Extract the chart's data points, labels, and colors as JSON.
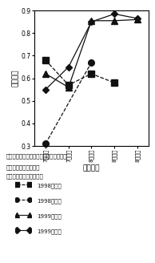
{
  "x_labels": [
    "7月中旬",
    "7月下旬",
    "8月上旬",
    "8月中旬",
    "8月下旬"
  ],
  "x_positions": [
    0,
    1,
    2,
    3,
    4
  ],
  "series": [
    {
      "label": "1998普通畑",
      "marker": "s",
      "linestyle": "--",
      "color": "#111111",
      "markersize": 5.5,
      "y": [
        0.68,
        0.57,
        0.62,
        0.58
      ],
      "x": [
        0,
        1,
        2,
        3
      ]
    },
    {
      "label": "1998転換畑",
      "marker": "o",
      "linestyle": "--",
      "color": "#111111",
      "markersize": 5.5,
      "y": [
        0.31,
        0.67
      ],
      "x": [
        0,
        2
      ]
    },
    {
      "label": "1999普通畑",
      "marker": "^",
      "linestyle": "-",
      "color": "#111111",
      "markersize": 5.5,
      "y": [
        0.62,
        0.56,
        0.855,
        0.855,
        0.86
      ],
      "x": [
        0,
        1,
        2,
        3,
        4
      ]
    },
    {
      "label": "1999転換畑",
      "marker": "D",
      "linestyle": "-",
      "color": "#111111",
      "markersize": 4.5,
      "y": [
        0.55,
        0.65,
        0.85,
        0.885,
        0.865
      ],
      "x": [
        0,
        1,
        2,
        3,
        4
      ]
    }
  ],
  "ylim": [
    0.3,
    0.9
  ],
  "yticks": [
    0.3,
    0.4,
    0.5,
    0.6,
    0.7,
    0.8,
    0.9
  ],
  "ylabel": "相関係数",
  "xlabel": "調査時期",
  "caption_line1": "図３　成熟期の倒伏程度とモーメント比",
  "caption_line2": "　との相関係数の推移",
  "caption_note": "注）５品種の測定結果。",
  "legend_entries": [
    "1998普通畑",
    "1998転換畑",
    "1999普通畑",
    "1999転換畑"
  ],
  "legend_markers": [
    "s",
    "o",
    "^",
    "D"
  ],
  "legend_linestyles": [
    "--",
    "--",
    "-",
    "-"
  ],
  "background_color": "#ffffff"
}
